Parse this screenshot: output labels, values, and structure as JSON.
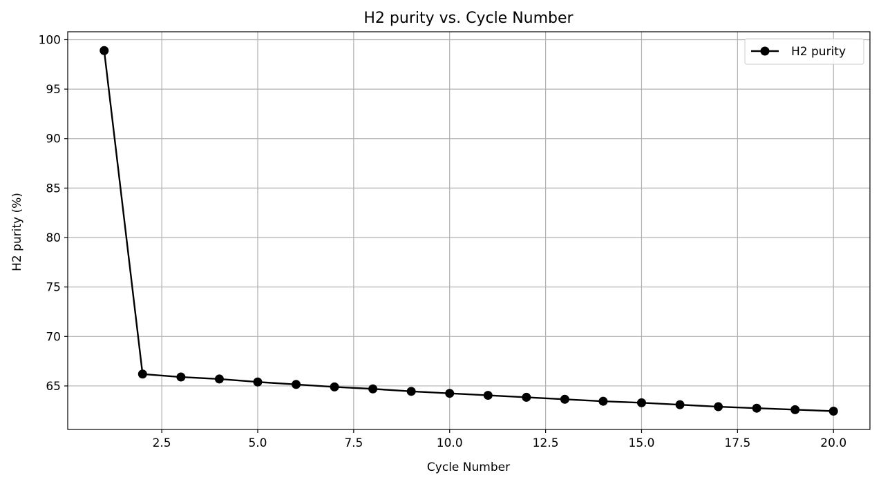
{
  "chart_data": {
    "type": "line",
    "title": "H2 purity vs. Cycle Number",
    "xlabel": "Cycle Number",
    "ylabel": "H2 purity (%)",
    "xlim": [
      0.05,
      20.95
    ],
    "ylim": [
      60.6,
      100.8
    ],
    "x_ticks": [
      2.5,
      5.0,
      7.5,
      10.0,
      12.5,
      15.0,
      17.5,
      20.0
    ],
    "y_ticks": [
      65,
      70,
      75,
      80,
      85,
      90,
      95,
      100
    ],
    "grid": true,
    "legend_position": "top-right",
    "line_color": "#000000",
    "marker": "circle",
    "series": [
      {
        "name": "H2 purity",
        "x": [
          1,
          2,
          3,
          4,
          5,
          6,
          7,
          8,
          9,
          10,
          11,
          12,
          13,
          14,
          15,
          16,
          17,
          18,
          19,
          20
        ],
        "y": [
          98.9,
          66.2,
          65.9,
          65.7,
          65.4,
          65.15,
          64.9,
          64.7,
          64.45,
          64.25,
          64.05,
          63.85,
          63.65,
          63.45,
          63.3,
          63.1,
          62.9,
          62.75,
          62.6,
          62.45
        ]
      }
    ]
  }
}
